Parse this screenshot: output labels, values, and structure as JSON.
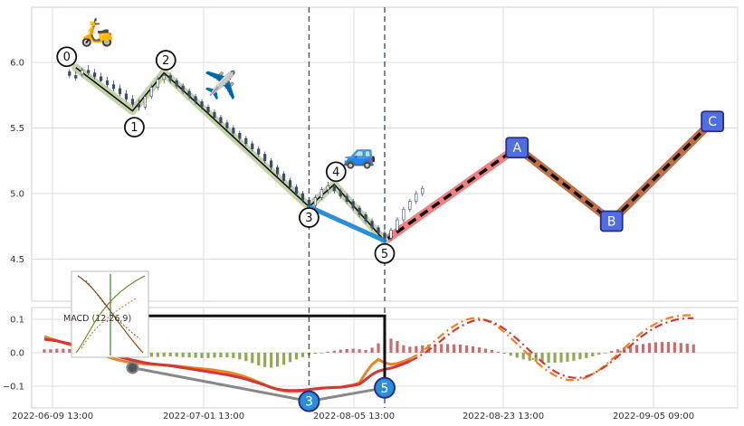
{
  "colors": {
    "candle": "#3a4a6b",
    "impulse": "#111111",
    "impulse_halo": "#c5d3a8",
    "wave_35": "#2a8fd8",
    "projection_up": "#f08080",
    "projection_down": "#c07048",
    "projection_dash": "#111111",
    "box_fill": "#4f6fe0",
    "box_stroke": "#2a2a8a",
    "hist_pos": "#c86e6e",
    "hist_neg": "#8faa52",
    "macd_line": "#f08020",
    "signal_line": "#d03838",
    "vline": "#445566",
    "divergence_price": "#111111",
    "divergence_macd": "#888888"
  },
  "chart_data": [
    {
      "type": "candlestick",
      "title": "",
      "ylim": [
        4.18,
        6.42
      ],
      "y_ticks": [
        "6.0",
        "5.5",
        "5.0",
        "4.5"
      ],
      "x_ticks": [
        "2022-06-09 13:00",
        "2022-07-01 13:00",
        "2022-08-05 13:00",
        "2022-08-23 13:00",
        "2022-09-05 09:00"
      ],
      "candles": [
        {
          "o": 5.93,
          "h": 5.95,
          "l": 5.88,
          "c": 5.9
        },
        {
          "o": 5.9,
          "h": 5.93,
          "l": 5.86,
          "c": 5.88
        },
        {
          "o": 5.91,
          "h": 5.96,
          "l": 5.89,
          "c": 5.94
        },
        {
          "o": 5.94,
          "h": 5.98,
          "l": 5.9,
          "c": 5.92
        },
        {
          "o": 5.92,
          "h": 5.95,
          "l": 5.87,
          "c": 5.89
        },
        {
          "o": 5.89,
          "h": 5.92,
          "l": 5.85,
          "c": 5.86
        },
        {
          "o": 5.86,
          "h": 5.89,
          "l": 5.81,
          "c": 5.83
        },
        {
          "o": 5.83,
          "h": 5.86,
          "l": 5.78,
          "c": 5.8
        },
        {
          "o": 5.8,
          "h": 5.83,
          "l": 5.74,
          "c": 5.76
        },
        {
          "o": 5.76,
          "h": 5.79,
          "l": 5.7,
          "c": 5.72
        },
        {
          "o": 5.72,
          "h": 5.75,
          "l": 5.66,
          "c": 5.68
        },
        {
          "o": 5.68,
          "h": 5.72,
          "l": 5.63,
          "c": 5.66
        },
        {
          "o": 5.66,
          "h": 5.76,
          "l": 5.64,
          "c": 5.74
        },
        {
          "o": 5.74,
          "h": 5.83,
          "l": 5.72,
          "c": 5.81
        },
        {
          "o": 5.81,
          "h": 5.89,
          "l": 5.79,
          "c": 5.87
        },
        {
          "o": 5.87,
          "h": 5.92,
          "l": 5.84,
          "c": 5.9
        },
        {
          "o": 5.9,
          "h": 5.92,
          "l": 5.84,
          "c": 5.86
        },
        {
          "o": 5.86,
          "h": 5.88,
          "l": 5.8,
          "c": 5.82
        },
        {
          "o": 5.82,
          "h": 5.84,
          "l": 5.76,
          "c": 5.78
        },
        {
          "o": 5.78,
          "h": 5.8,
          "l": 5.72,
          "c": 5.74
        },
        {
          "o": 5.74,
          "h": 5.76,
          "l": 5.68,
          "c": 5.7
        },
        {
          "o": 5.7,
          "h": 5.72,
          "l": 5.64,
          "c": 5.66
        },
        {
          "o": 5.66,
          "h": 5.68,
          "l": 5.6,
          "c": 5.62
        },
        {
          "o": 5.62,
          "h": 5.64,
          "l": 5.56,
          "c": 5.58
        },
        {
          "o": 5.58,
          "h": 5.6,
          "l": 5.52,
          "c": 5.54
        },
        {
          "o": 5.54,
          "h": 5.56,
          "l": 5.48,
          "c": 5.5
        },
        {
          "o": 5.5,
          "h": 5.52,
          "l": 5.44,
          "c": 5.46
        },
        {
          "o": 5.46,
          "h": 5.48,
          "l": 5.4,
          "c": 5.42
        },
        {
          "o": 5.42,
          "h": 5.44,
          "l": 5.36,
          "c": 5.38
        },
        {
          "o": 5.38,
          "h": 5.4,
          "l": 5.32,
          "c": 5.34
        },
        {
          "o": 5.34,
          "h": 5.36,
          "l": 5.28,
          "c": 5.3
        },
        {
          "o": 5.3,
          "h": 5.32,
          "l": 5.23,
          "c": 5.25
        },
        {
          "o": 5.25,
          "h": 5.27,
          "l": 5.18,
          "c": 5.2
        },
        {
          "o": 5.2,
          "h": 5.22,
          "l": 5.13,
          "c": 5.15
        },
        {
          "o": 5.15,
          "h": 5.17,
          "l": 5.08,
          "c": 5.1
        },
        {
          "o": 5.1,
          "h": 5.12,
          "l": 5.03,
          "c": 5.05
        },
        {
          "o": 5.05,
          "h": 5.07,
          "l": 4.98,
          "c": 5.0
        },
        {
          "o": 5.0,
          "h": 5.02,
          "l": 4.93,
          "c": 4.95
        },
        {
          "o": 4.95,
          "h": 4.97,
          "l": 4.89,
          "c": 4.91
        },
        {
          "o": 4.91,
          "h": 4.99,
          "l": 4.89,
          "c": 4.97
        },
        {
          "o": 4.97,
          "h": 5.05,
          "l": 4.95,
          "c": 5.03
        },
        {
          "o": 5.03,
          "h": 5.09,
          "l": 5.0,
          "c": 5.06
        },
        {
          "o": 5.06,
          "h": 5.08,
          "l": 5.0,
          "c": 5.02
        },
        {
          "o": 5.02,
          "h": 5.04,
          "l": 4.96,
          "c": 4.98
        },
        {
          "o": 4.98,
          "h": 5.0,
          "l": 4.92,
          "c": 4.94
        },
        {
          "o": 4.94,
          "h": 4.96,
          "l": 4.87,
          "c": 4.89
        },
        {
          "o": 4.89,
          "h": 4.91,
          "l": 4.82,
          "c": 4.84
        },
        {
          "o": 4.84,
          "h": 4.86,
          "l": 4.77,
          "c": 4.79
        },
        {
          "o": 4.79,
          "h": 4.81,
          "l": 4.72,
          "c": 4.74
        },
        {
          "o": 4.74,
          "h": 4.76,
          "l": 4.68,
          "c": 4.7
        },
        {
          "o": 4.7,
          "h": 4.72,
          "l": 4.63,
          "c": 4.66
        },
        {
          "o": 4.66,
          "h": 4.74,
          "l": 4.64,
          "c": 4.72
        },
        {
          "o": 4.72,
          "h": 4.82,
          "l": 4.7,
          "c": 4.8
        },
        {
          "o": 4.8,
          "h": 4.9,
          "l": 4.78,
          "c": 4.88
        },
        {
          "o": 4.88,
          "h": 4.96,
          "l": 4.86,
          "c": 4.94
        },
        {
          "o": 4.94,
          "h": 5.02,
          "l": 4.92,
          "c": 5.0
        },
        {
          "o": 5.0,
          "h": 5.06,
          "l": 4.98,
          "c": 5.04
        }
      ],
      "elliott_impulse": {
        "labels": [
          "0",
          "1",
          "2",
          "3",
          "4",
          "5"
        ],
        "points": [
          [
            1,
            5.96
          ],
          [
            10,
            5.63
          ],
          [
            15,
            5.92
          ],
          [
            38,
            4.9
          ],
          [
            42,
            5.07
          ],
          [
            50,
            4.64
          ]
        ]
      },
      "wave_3_5_link": [
        [
          38,
          4.9
        ],
        [
          50,
          4.64
        ]
      ],
      "projection_abc": {
        "labels": [
          "A",
          "B",
          "C"
        ],
        "points": [
          [
            50,
            4.64
          ],
          [
            71,
            5.35
          ],
          [
            86,
            4.79
          ],
          [
            102,
            5.55
          ]
        ]
      },
      "vertical_markers_x": [
        38,
        50
      ],
      "emoji_markers": [
        {
          "icon": "scooter",
          "glyph": "🛵",
          "at": [
            4.4,
            6.16
          ]
        },
        {
          "icon": "airplane",
          "glyph": "✈️",
          "at": [
            24,
            5.76
          ]
        },
        {
          "icon": "car",
          "glyph": "🚙",
          "at": [
            46,
            5.23
          ]
        }
      ],
      "x_range": [
        -6,
        106
      ]
    },
    {
      "type": "bar+line",
      "title": "MACD (12,26,9)",
      "ylim": [
        -0.165,
        0.135
      ],
      "y_ticks": [
        "0.1",
        "0.0",
        "−0.1"
      ],
      "series": [
        {
          "name": "",
          "role": "histogram",
          "values": [
            0.01,
            0.01,
            0.012,
            0.012,
            0.011,
            0.01,
            0.008,
            0.006,
            0.004,
            0.002,
            0.0,
            -0.002,
            -0.003,
            -0.004,
            -0.006,
            -0.008,
            -0.01,
            -0.012,
            -0.013,
            -0.012,
            -0.011,
            -0.012,
            -0.013,
            -0.014,
            -0.015,
            -0.016,
            -0.016,
            -0.015,
            -0.014,
            -0.014,
            -0.016,
            -0.02,
            -0.025,
            -0.031,
            -0.038,
            -0.043,
            -0.045,
            -0.042,
            -0.036,
            -0.028,
            -0.02,
            -0.013,
            -0.007,
            -0.003,
            0.0,
            0.003,
            0.006,
            0.009,
            0.011,
            0.012,
            0.01,
            0.008,
            0.015,
            0.028,
            0.038,
            0.042,
            0.035,
            0.022,
            0.018,
            0.02,
            0.022,
            0.024,
            0.025,
            0.026,
            0.026,
            0.025,
            0.024,
            0.022,
            0.019,
            0.016,
            0.012,
            0.008,
            0.003,
            -0.003,
            -0.009,
            -0.015,
            -0.02,
            -0.024,
            -0.027,
            -0.029,
            -0.03,
            -0.03,
            -0.029,
            -0.027,
            -0.024,
            -0.02,
            -0.016,
            -0.011,
            -0.006,
            0.0,
            0.005,
            0.01,
            0.015,
            0.019,
            0.023,
            0.026,
            0.029,
            0.031,
            0.032,
            0.032,
            0.031,
            0.029,
            0.027,
            0.025
          ]
        },
        {
          "name": "",
          "role": "macd",
          "values": [
            0.048,
            0.042,
            0.036,
            0.03,
            0.024,
            0.018,
            0.012,
            0.006,
            0.0,
            -0.006,
            -0.012,
            -0.018,
            -0.023,
            -0.027,
            -0.03,
            -0.032,
            -0.034,
            -0.035,
            -0.036,
            -0.037,
            -0.038,
            -0.04,
            -0.042,
            -0.044,
            -0.046,
            -0.048,
            -0.05,
            -0.052,
            -0.055,
            -0.058,
            -0.062,
            -0.067,
            -0.073,
            -0.08,
            -0.088,
            -0.096,
            -0.104,
            -0.11,
            -0.114,
            -0.116,
            -0.116,
            -0.114,
            -0.111,
            -0.108,
            -0.106,
            -0.105,
            -0.104,
            -0.103,
            -0.1,
            -0.096,
            -0.09,
            -0.06,
            -0.035,
            -0.02,
            -0.03,
            -0.035,
            -0.032,
            -0.026,
            -0.018,
            -0.008,
            0.005,
            0.02,
            0.036,
            0.052,
            0.067,
            0.08,
            0.091,
            0.099,
            0.103,
            0.103,
            0.098,
            0.089,
            0.076,
            0.061,
            0.044,
            0.026,
            0.008,
            -0.01,
            -0.027,
            -0.043,
            -0.057,
            -0.068,
            -0.076,
            -0.081,
            -0.082,
            -0.08,
            -0.074,
            -0.064,
            -0.052,
            -0.037,
            -0.021,
            -0.004,
            0.014,
            0.031,
            0.048,
            0.063,
            0.076,
            0.087,
            0.096,
            0.103,
            0.108,
            0.111,
            0.112,
            0.112
          ]
        },
        {
          "name": "",
          "role": "signal",
          "values": [
            0.04,
            0.038,
            0.035,
            0.031,
            0.027,
            0.022,
            0.017,
            0.012,
            0.007,
            0.002,
            -0.003,
            -0.008,
            -0.013,
            -0.018,
            -0.022,
            -0.026,
            -0.03,
            -0.033,
            -0.035,
            -0.037,
            -0.039,
            -0.042,
            -0.045,
            -0.048,
            -0.051,
            -0.054,
            -0.057,
            -0.06,
            -0.063,
            -0.066,
            -0.07,
            -0.074,
            -0.079,
            -0.085,
            -0.091,
            -0.097,
            -0.104,
            -0.109,
            -0.112,
            -0.113,
            -0.113,
            -0.112,
            -0.11,
            -0.108,
            -0.106,
            -0.105,
            -0.104,
            -0.103,
            -0.101,
            -0.098,
            -0.094,
            -0.08,
            -0.065,
            -0.055,
            -0.05,
            -0.046,
            -0.04,
            -0.033,
            -0.025,
            -0.016,
            -0.005,
            0.008,
            0.022,
            0.037,
            0.052,
            0.066,
            0.078,
            0.088,
            0.095,
            0.098,
            0.097,
            0.092,
            0.083,
            0.071,
            0.057,
            0.041,
            0.024,
            0.006,
            -0.011,
            -0.028,
            -0.043,
            -0.056,
            -0.066,
            -0.072,
            -0.075,
            -0.075,
            -0.071,
            -0.064,
            -0.053,
            -0.041,
            -0.027,
            -0.011,
            0.005,
            0.021,
            0.037,
            0.052,
            0.065,
            0.076,
            0.085,
            0.092,
            0.098,
            0.101,
            0.103,
            0.103
          ]
        }
      ],
      "wave_markers": [
        {
          "label": "3",
          "x": 38,
          "y": -0.145
        },
        {
          "label": "5",
          "x": 50,
          "y": -0.105
        }
      ],
      "divergence_macd_points": [
        [
          10,
          -0.045
        ],
        [
          38,
          -0.145
        ],
        [
          50,
          -0.105
        ]
      ],
      "divergence_price_bracket": {
        "from_x": 10,
        "to_x": 50,
        "level": 0.11,
        "end": -0.105
      },
      "x_range": [
        -6,
        106
      ]
    }
  ]
}
